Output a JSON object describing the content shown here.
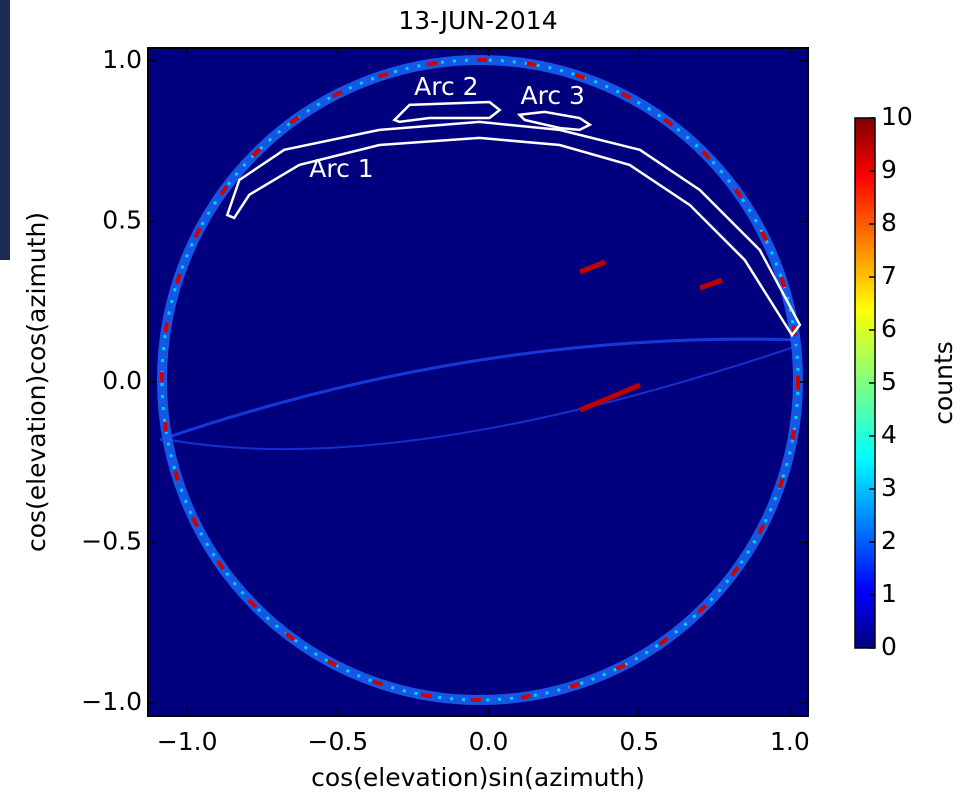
{
  "chart_data": {
    "type": "heatmap",
    "title": "13-JUN-2014",
    "x_label": "cos(elevation)sin(azimuth)",
    "y_label": "cos(elevation)cos(azimuth)",
    "xlim": [
      -1.13,
      1.06
    ],
    "ylim": [
      -1.04,
      1.04
    ],
    "xticks": [
      {
        "value": -1,
        "label": "−1.0"
      },
      {
        "value": -0.5,
        "label": "−0.5"
      },
      {
        "value": 0,
        "label": "0.0"
      },
      {
        "value": 0.5,
        "label": "0.5"
      },
      {
        "value": 1,
        "label": "1.0"
      }
    ],
    "yticks": [
      {
        "value": -1,
        "label": "−1.0"
      },
      {
        "value": -0.5,
        "label": "−0.5"
      },
      {
        "value": 0,
        "label": "0.0"
      },
      {
        "value": 0.5,
        "label": "0.5"
      },
      {
        "value": 1,
        "label": "1.0"
      }
    ],
    "colorbar": {
      "label": "counts",
      "colormap": "jet",
      "lim": [
        0,
        10
      ],
      "ticks": [
        0,
        1,
        2,
        3,
        4,
        5,
        6,
        7,
        8,
        9,
        10
      ]
    },
    "annotations": [
      {
        "label": "Arc 1",
        "label_at": [
          -0.488,
          0.66
        ],
        "x": [
          -0.867,
          -0.827,
          -0.678,
          -0.362,
          -0.03,
          0.236,
          0.502,
          0.701,
          0.9,
          1.033,
          1.007,
          0.85,
          0.668,
          0.468,
          0.236,
          -0.03,
          -0.362,
          -0.628,
          -0.794,
          -0.844
        ],
        "y": [
          0.52,
          0.629,
          0.723,
          0.785,
          0.81,
          0.785,
          0.723,
          0.598,
          0.411,
          0.178,
          0.146,
          0.38,
          0.551,
          0.676,
          0.738,
          0.76,
          0.738,
          0.676,
          0.583,
          0.511
        ]
      },
      {
        "label": "Arc 2",
        "label_at": [
          -0.14,
          0.916
        ],
        "x": [
          -0.312,
          -0.262,
          0.003,
          0.037,
          0.003,
          -0.196,
          -0.296
        ],
        "y": [
          0.816,
          0.863,
          0.872,
          0.847,
          0.822,
          0.822,
          0.81
        ]
      },
      {
        "label": "Arc 3",
        "label_at": [
          0.213,
          0.888
        ],
        "x": [
          0.103,
          0.186,
          0.302,
          0.336,
          0.302,
          0.236,
          0.12
        ],
        "y": [
          0.832,
          0.841,
          0.822,
          0.801,
          0.785,
          0.791,
          0.816
        ]
      }
    ]
  }
}
